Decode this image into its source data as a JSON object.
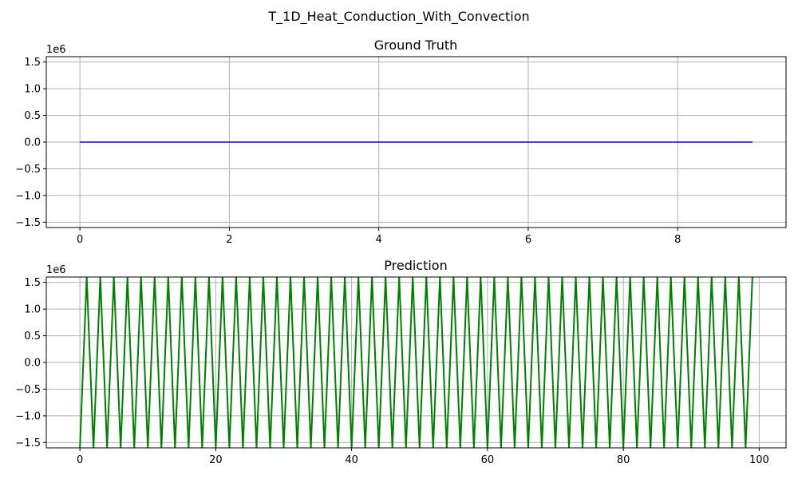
{
  "figure_title": "T_1D_Heat_Conduction_With_Convection",
  "chart_data": [
    {
      "type": "line",
      "title": "Ground Truth",
      "xlabel": "",
      "ylabel": "",
      "x_range": [
        0,
        9
      ],
      "xlim": [
        -0.45,
        9.45
      ],
      "ylim": [
        -1.6,
        1.6
      ],
      "y_scale_label": "1e6",
      "xticks": [
        0,
        2,
        4,
        6,
        8
      ],
      "yticks": [
        -1.5,
        -1.0,
        -0.5,
        0.0,
        0.5,
        1.0,
        1.5
      ],
      "xtick_labels": [
        "0",
        "2",
        "4",
        "6",
        "8"
      ],
      "ytick_labels": [
        "−1.5",
        "−1.0",
        "−0.5",
        "0.0",
        "0.5",
        "1.0",
        "1.5"
      ],
      "grid": true,
      "color": "#0000ff",
      "series": [
        {
          "x": [
            0,
            9
          ],
          "values": [
            0,
            0
          ]
        }
      ]
    },
    {
      "type": "line",
      "title": "Prediction",
      "xlabel": "",
      "ylabel": "",
      "x_range": [
        0,
        99
      ],
      "xlim": [
        -4.95,
        103.95
      ],
      "ylim": [
        -1.6,
        1.6
      ],
      "y_scale_label": "1e6",
      "xticks": [
        0,
        20,
        40,
        60,
        80,
        100
      ],
      "yticks": [
        -1.5,
        -1.0,
        -0.5,
        0.0,
        0.5,
        1.0,
        1.5
      ],
      "xtick_labels": [
        "0",
        "20",
        "40",
        "60",
        "80",
        "100"
      ],
      "ytick_labels": [
        "−1.5",
        "−1.0",
        "−0.5",
        "0.0",
        "0.5",
        "1.0",
        "1.5"
      ],
      "grid": true,
      "color": "#008000",
      "series": [
        {
          "x": [
            0,
            99
          ],
          "pattern": "alternating",
          "even_index_value": -1.6,
          "odd_index_value": 1.6
        }
      ]
    }
  ]
}
